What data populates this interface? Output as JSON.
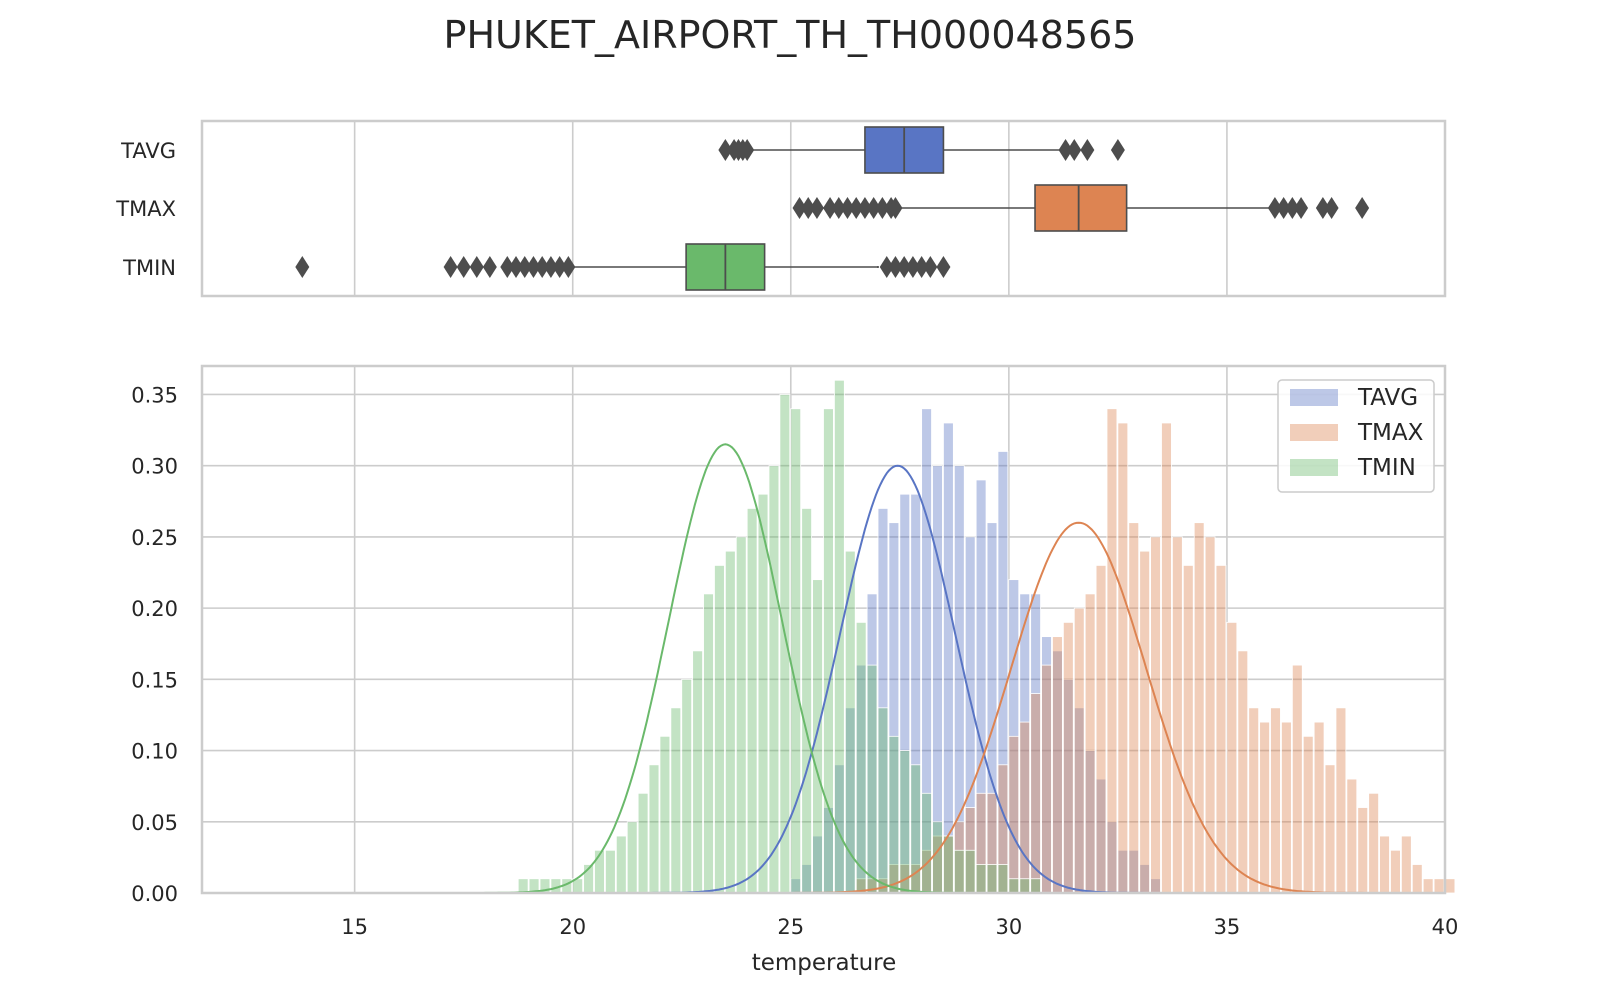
{
  "title": "PHUKET_AIRPORT_TH_TH000048565",
  "chart_data": [
    {
      "type": "box",
      "categories": [
        "TAVG",
        "TMAX",
        "TMIN"
      ],
      "series": [
        {
          "name": "TAVG",
          "color": "#5975c4",
          "whisker_low": 24.0,
          "q1": 26.7,
          "median": 27.6,
          "q3": 28.5,
          "whisker_high": 31.2,
          "outliers": [
            23.5,
            23.7,
            23.8,
            23.9,
            24.0,
            31.3,
            31.5,
            31.8,
            32.5
          ]
        },
        {
          "name": "TMAX",
          "color": "#dd8452",
          "whisker_low": 27.5,
          "q1": 30.6,
          "median": 31.6,
          "q3": 32.7,
          "whisker_high": 36.0,
          "outliers": [
            25.2,
            25.4,
            25.6,
            25.9,
            26.1,
            26.3,
            26.5,
            26.7,
            26.9,
            27.1,
            27.3,
            27.4,
            36.1,
            36.3,
            36.5,
            36.7,
            37.2,
            37.4,
            38.1
          ]
        },
        {
          "name": "TMIN",
          "color": "#6ab96b",
          "whisker_low": 20.0,
          "q1": 22.6,
          "median": 23.5,
          "q3": 24.4,
          "whisker_high": 27.0,
          "outliers": [
            13.8,
            17.2,
            17.5,
            17.8,
            18.1,
            18.5,
            18.7,
            18.9,
            19.1,
            19.3,
            19.5,
            19.7,
            19.9,
            27.2,
            27.4,
            27.6,
            27.8,
            28.0,
            28.2,
            28.5
          ]
        }
      ],
      "xlim": [
        11.5,
        40.0
      ],
      "grid": true
    },
    {
      "type": "histogram",
      "xlabel": "temperature",
      "xticks": [
        15,
        20,
        25,
        30,
        35,
        40
      ],
      "yticks": [
        "0.00",
        "0.05",
        "0.10",
        "0.15",
        "0.20",
        "0.25",
        "0.30",
        "0.35"
      ],
      "xlim": [
        11.5,
        40.0
      ],
      "ylim": [
        0,
        0.37
      ],
      "legend": "top-right",
      "grid": true,
      "series": [
        {
          "name": "TAVG",
          "color": "#5975c4",
          "bin_width": 0.25,
          "bin_start": 25.0,
          "values": [
            0.01,
            0.02,
            0.04,
            0.06,
            0.09,
            0.13,
            0.16,
            0.21,
            0.27,
            0.26,
            0.28,
            0.28,
            0.34,
            0.3,
            0.33,
            0.3,
            0.25,
            0.29,
            0.26,
            0.31,
            0.22,
            0.21,
            0.21,
            0.18,
            0.17,
            0.15,
            0.13,
            0.1,
            0.08,
            0.05,
            0.03,
            0.03,
            0.02,
            0.01
          ],
          "kde_mean": 27.45,
          "kde_sd": 1.32,
          "kde_peak": 0.3
        },
        {
          "name": "TMAX",
          "color": "#dd8452",
          "bin_width": 0.25,
          "bin_start": 26.5,
          "values": [
            0.01,
            0.01,
            0.01,
            0.02,
            0.02,
            0.02,
            0.03,
            0.04,
            0.04,
            0.05,
            0.06,
            0.07,
            0.07,
            0.09,
            0.11,
            0.12,
            0.14,
            0.16,
            0.18,
            0.19,
            0.2,
            0.21,
            0.23,
            0.34,
            0.33,
            0.26,
            0.24,
            0.25,
            0.33,
            0.25,
            0.23,
            0.26,
            0.25,
            0.23,
            0.19,
            0.17,
            0.13,
            0.12,
            0.13,
            0.12,
            0.16,
            0.11,
            0.12,
            0.09,
            0.13,
            0.08,
            0.06,
            0.07,
            0.04,
            0.03,
            0.04,
            0.02,
            0.01,
            0.01,
            0.01
          ],
          "kde_mean": 31.6,
          "kde_sd": 1.55,
          "kde_peak": 0.26
        },
        {
          "name": "TMIN",
          "color": "#6ab96b",
          "bin_width": 0.25,
          "bin_start": 18.75,
          "values": [
            0.01,
            0.01,
            0.01,
            0.01,
            0.01,
            0.01,
            0.02,
            0.03,
            0.03,
            0.04,
            0.05,
            0.07,
            0.09,
            0.11,
            0.13,
            0.15,
            0.17,
            0.21,
            0.23,
            0.24,
            0.25,
            0.27,
            0.28,
            0.3,
            0.35,
            0.34,
            0.27,
            0.22,
            0.34,
            0.36,
            0.24,
            0.19,
            0.16,
            0.13,
            0.11,
            0.1,
            0.09,
            0.07,
            0.05,
            0.04,
            0.03,
            0.03,
            0.02,
            0.02,
            0.02,
            0.01,
            0.01,
            0.01
          ],
          "kde_mean": 23.5,
          "kde_sd": 1.3,
          "kde_peak": 0.315
        }
      ]
    }
  ]
}
